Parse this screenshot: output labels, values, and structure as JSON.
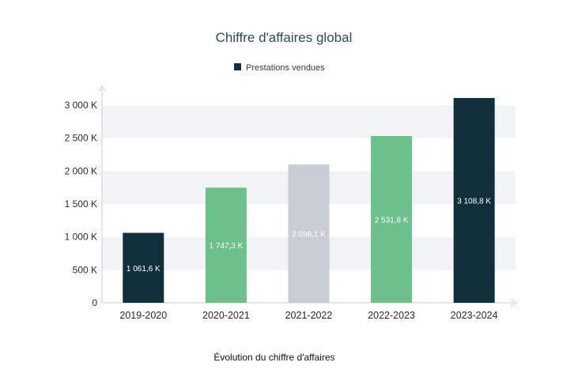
{
  "chart_data": {
    "type": "bar",
    "title": "Chiffre d'affaires global",
    "legend": {
      "label": "Prestations vendues",
      "color": "#0f2f3a",
      "placement": "top-center"
    },
    "categories": [
      "2019-2020",
      "2020-2021",
      "2021-2022",
      "2022-2023",
      "2023-2024"
    ],
    "series": [
      {
        "name": "Prestations vendues",
        "values": [
          1061.6,
          1747.3,
          2098.1,
          2531.8,
          3108.8
        ]
      }
    ],
    "data_labels": [
      "1 061,6 K",
      "1 747,3 K",
      "2 098,1 K",
      "2 531,8 K",
      "3 108,8 K"
    ],
    "bar_colors": [
      "#0f2f3a",
      "#6cc08b",
      "#c9cdd5",
      "#6cc08b",
      "#0f2f3a"
    ],
    "y_ticks": [
      {
        "value": 0,
        "label": "0"
      },
      {
        "value": 500,
        "label": "500 K"
      },
      {
        "value": 1000,
        "label": "1 000 K"
      },
      {
        "value": 1500,
        "label": "1 500 K"
      },
      {
        "value": 2000,
        "label": "2 000 K"
      },
      {
        "value": 2500,
        "label": "2 500 K"
      },
      {
        "value": 3000,
        "label": "3 000 K"
      }
    ],
    "ylim": [
      0,
      3000
    ],
    "grid": "alternating horizontal bands",
    "xlabel": "",
    "ylabel": ""
  },
  "caption": "Évolution du chiffre d'affaires",
  "colors": {
    "band": "#f2f3f5",
    "axis": "#c8ccd2",
    "title": "#2d4a5a"
  }
}
